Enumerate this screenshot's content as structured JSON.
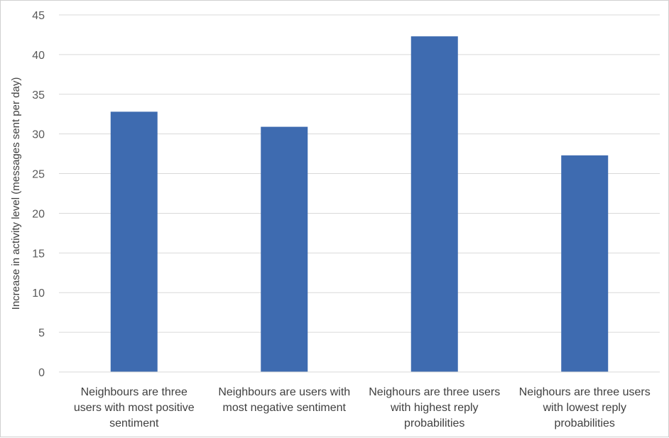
{
  "chart_data": {
    "type": "bar",
    "title": "",
    "xlabel": "",
    "ylabel": "Increase in activity level (messages sent per day)",
    "ylim": [
      0,
      45
    ],
    "yticks": [
      0,
      5,
      10,
      15,
      20,
      25,
      30,
      35,
      40,
      45
    ],
    "grid": true,
    "legend": "none",
    "bar_color": "#3E6BB0",
    "categories": [
      [
        "Neighbours are three",
        "users with most positive",
        "sentiment"
      ],
      [
        "Neighbours are users with",
        "most negative sentiment"
      ],
      [
        "Neighours are three users",
        "with highest reply",
        "probabilities"
      ],
      [
        "Neighours are three users",
        "with lowest reply",
        "probabilities"
      ]
    ],
    "values": [
      32.8,
      30.9,
      42.3,
      27.3
    ]
  }
}
